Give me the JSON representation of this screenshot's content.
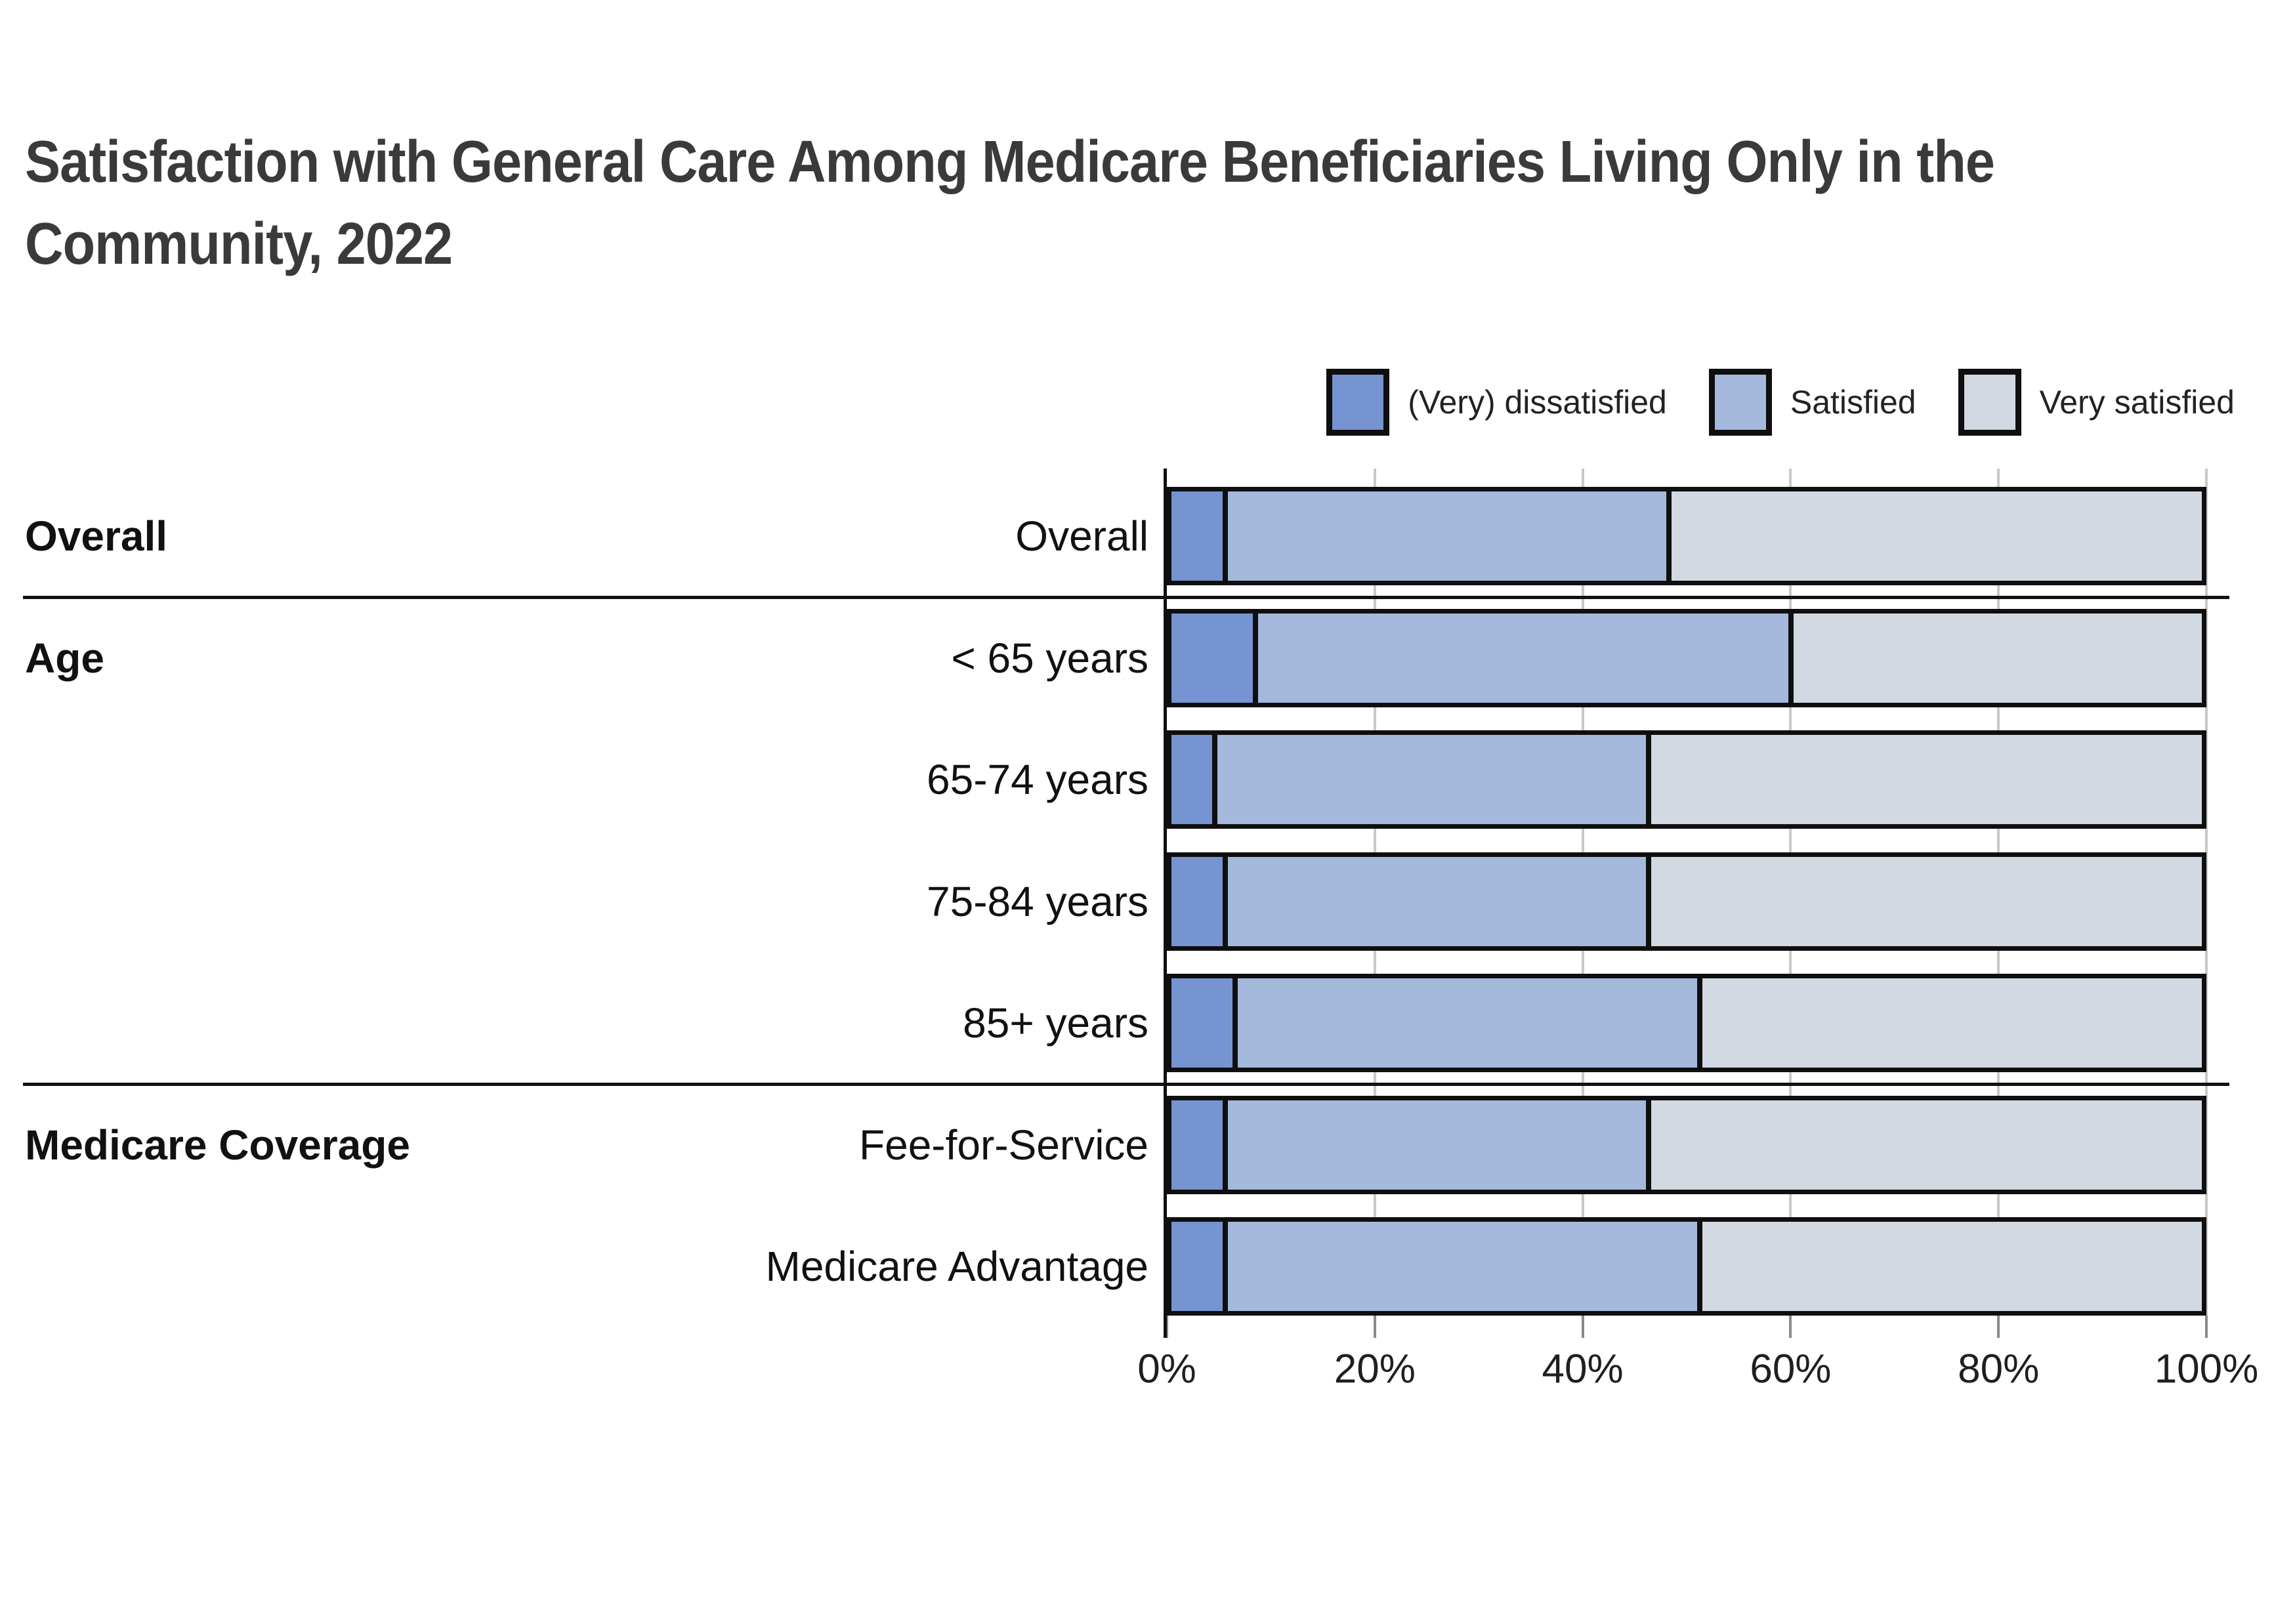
{
  "header": {
    "title_lines": [
      "Satisfaction with General Care Among Medicare Beneficiaries Living Only in the",
      "Community, 2022"
    ]
  },
  "legend": {
    "items": [
      {
        "label": "(Very) dissatisfied",
        "color": "#7694d1"
      },
      {
        "label": "Satisfied",
        "color": "#a5b9dd"
      },
      {
        "label": "Very satisfied",
        "color": "#d3d9e3"
      }
    ]
  },
  "chart_data": {
    "type": "bar",
    "stacked": true,
    "orientation": "horizontal",
    "title": "Satisfaction with General Care Among Medicare Beneficiaries Living Only in the Community, 2022",
    "categories": [
      "Overall",
      "< 65 years",
      "65-74 years",
      "75-84 years",
      "85+ years",
      "Fee-for-Service",
      "Medicare Advantage"
    ],
    "groups": [
      {
        "label": "Overall",
        "rows": [
          0
        ],
        "divider_after": true
      },
      {
        "label": "Age",
        "rows": [
          1,
          2,
          3,
          4
        ],
        "divider_after": true
      },
      {
        "label": "Medicare Coverage",
        "rows": [
          5,
          6
        ],
        "divider_after": false
      }
    ],
    "series": [
      {
        "name": "(Very) dissatisfied",
        "color": "#7694d1",
        "values": [
          5,
          8,
          4,
          5,
          6,
          5,
          5
        ]
      },
      {
        "name": "Satisfied",
        "color": "#a5b9dd",
        "values": [
          43,
          52,
          42,
          41,
          45,
          41,
          46
        ]
      },
      {
        "name": "Very satisfied",
        "color": "#d3d9e3",
        "values": [
          52,
          40,
          54,
          54,
          49,
          54,
          49
        ]
      }
    ],
    "x_axis": {
      "ticks": [
        "0%",
        "20%",
        "40%",
        "60%",
        "80%",
        "100%"
      ],
      "min": 0,
      "max": 100,
      "unit": "%"
    },
    "grid": true,
    "legend_position": "top-right"
  }
}
